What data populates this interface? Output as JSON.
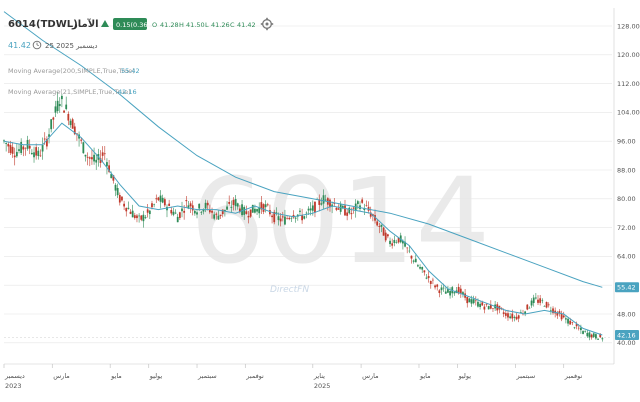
{
  "header": {
    "symbol": "6014",
    "exchange": "(TDWL)",
    "name": "الآمار",
    "change_badge": "0.15(0.36)",
    "ohlc": {
      "o_label": "O",
      "o": "41.28",
      "h_label": "H",
      "h": "41.50",
      "l_label": "L",
      "l": "41.26",
      "c_label": "C",
      "c": "41.42"
    },
    "last_price": "41.42",
    "date": "25 2025 ديسمبر",
    "gear_icon": "gear-icon",
    "clock_icon": "clock-icon",
    "up_icon": "triangle-up-icon"
  },
  "indicators": [
    {
      "label": "Moving Average(200,SIMPLE,True,True)",
      "value": "55.42",
      "color": "#4aa3c0"
    },
    {
      "label": "Moving Average(21,SIMPLE,True,True)",
      "value": "42.16",
      "color": "#4aa3c0"
    }
  ],
  "watermark": {
    "symbol": "6014",
    "brand": "DirectFN"
  },
  "colors": {
    "up": "#2e8b57",
    "down": "#c0392b",
    "ma": "#4aa3c0",
    "badge": "#2e8b57"
  },
  "chart_data": {
    "type": "candlestick",
    "yticks": [
      "128.00",
      "120.00",
      "112.00",
      "104.00",
      "96.00",
      "88.00",
      "80.00",
      "72.00",
      "64.00",
      "56.00",
      "48.00",
      "40.00"
    ],
    "ylim": [
      38,
      133
    ],
    "price_labels": [
      {
        "value": 55.42,
        "text": "55.42",
        "color": "#4aa3c0"
      },
      {
        "value": 42.16,
        "text": "42.16",
        "color": "#4aa3c0"
      }
    ],
    "xticks": [
      {
        "t": 0.0,
        "label": "ديسمبر",
        "sub": "2023"
      },
      {
        "t": 2.5,
        "label": "مارس",
        "sub": ""
      },
      {
        "t": 5.5,
        "label": "مايو",
        "sub": ""
      },
      {
        "t": 7.5,
        "label": "يوليو",
        "sub": ""
      },
      {
        "t": 10.0,
        "label": "سبتمبر",
        "sub": ""
      },
      {
        "t": 12.5,
        "label": "نوفمبر",
        "sub": ""
      },
      {
        "t": 16.0,
        "label": "يناير",
        "sub": "2025"
      },
      {
        "t": 18.5,
        "label": "مارس",
        "sub": ""
      },
      {
        "t": 21.5,
        "label": "مايو",
        "sub": ""
      },
      {
        "t": 23.5,
        "label": "يوليو",
        "sub": ""
      },
      {
        "t": 26.5,
        "label": "سبتمبر",
        "sub": ""
      },
      {
        "t": 29.0,
        "label": "نوفمبر",
        "sub": ""
      }
    ],
    "tmax": 31.5,
    "price_path": [
      [
        0.0,
        96
      ],
      [
        0.6,
        93
      ],
      [
        1.2,
        95
      ],
      [
        1.8,
        92
      ],
      [
        2.2,
        96
      ],
      [
        2.6,
        103
      ],
      [
        2.9,
        108
      ],
      [
        3.3,
        104
      ],
      [
        3.8,
        98
      ],
      [
        4.3,
        92
      ],
      [
        4.8,
        90
      ],
      [
        5.2,
        93
      ],
      [
        5.6,
        86
      ],
      [
        6.0,
        80
      ],
      [
        6.5,
        77
      ],
      [
        7.0,
        74
      ],
      [
        7.5,
        76
      ],
      [
        8.0,
        80
      ],
      [
        8.5,
        78
      ],
      [
        9.0,
        75
      ],
      [
        9.5,
        79
      ],
      [
        10.0,
        77
      ],
      [
        10.5,
        78
      ],
      [
        11.0,
        75
      ],
      [
        11.5,
        77
      ],
      [
        12.0,
        79
      ],
      [
        12.5,
        76
      ],
      [
        13.0,
        77
      ],
      [
        13.5,
        78
      ],
      [
        14.0,
        75
      ],
      [
        14.5,
        74
      ],
      [
        15.0,
        76
      ],
      [
        15.5,
        75
      ],
      [
        16.0,
        77
      ],
      [
        16.5,
        80
      ],
      [
        17.0,
        79
      ],
      [
        17.5,
        77
      ],
      [
        18.0,
        76
      ],
      [
        18.5,
        79
      ],
      [
        19.0,
        76
      ],
      [
        19.5,
        72
      ],
      [
        20.0,
        68
      ],
      [
        20.5,
        69
      ],
      [
        21.0,
        65
      ],
      [
        21.5,
        61
      ],
      [
        22.0,
        58
      ],
      [
        22.5,
        55
      ],
      [
        23.0,
        54
      ],
      [
        23.5,
        55
      ],
      [
        24.0,
        52
      ],
      [
        24.5,
        51
      ],
      [
        25.0,
        50
      ],
      [
        25.5,
        50
      ],
      [
        26.0,
        48
      ],
      [
        26.5,
        47
      ],
      [
        27.0,
        49
      ],
      [
        27.5,
        52
      ],
      [
        28.0,
        51
      ],
      [
        28.5,
        49
      ],
      [
        29.0,
        47
      ],
      [
        29.5,
        45
      ],
      [
        30.0,
        43
      ],
      [
        30.5,
        42
      ],
      [
        31.0,
        41.4
      ]
    ],
    "series": [
      {
        "name": "Moving Average(200,SIMPLE,True,True)",
        "points": [
          [
            0.0,
            132
          ],
          [
            2.0,
            124
          ],
          [
            4.0,
            117
          ],
          [
            6.0,
            109
          ],
          [
            8.0,
            100
          ],
          [
            10.0,
            92
          ],
          [
            12.0,
            86
          ],
          [
            14.0,
            82
          ],
          [
            16.0,
            80
          ],
          [
            18.0,
            78
          ],
          [
            20.0,
            76
          ],
          [
            22.0,
            73
          ],
          [
            24.0,
            69
          ],
          [
            26.0,
            65
          ],
          [
            28.0,
            61
          ],
          [
            30.0,
            57
          ],
          [
            31.0,
            55.42
          ]
        ]
      },
      {
        "name": "Moving Average(21,SIMPLE,True,True)",
        "points": [
          [
            0.0,
            96
          ],
          [
            1.0,
            95
          ],
          [
            2.0,
            95
          ],
          [
            3.0,
            101
          ],
          [
            4.0,
            97
          ],
          [
            5.0,
            91
          ],
          [
            6.0,
            84
          ],
          [
            7.0,
            78
          ],
          [
            8.0,
            77
          ],
          [
            9.0,
            78
          ],
          [
            10.0,
            77
          ],
          [
            11.0,
            77
          ],
          [
            12.0,
            76
          ],
          [
            13.0,
            78
          ],
          [
            14.0,
            76
          ],
          [
            15.0,
            75
          ],
          [
            16.0,
            76
          ],
          [
            17.0,
            78
          ],
          [
            18.0,
            77
          ],
          [
            19.0,
            76
          ],
          [
            20.0,
            71
          ],
          [
            21.0,
            67
          ],
          [
            22.0,
            60
          ],
          [
            23.0,
            55
          ],
          [
            24.0,
            53
          ],
          [
            25.0,
            51
          ],
          [
            26.0,
            49
          ],
          [
            27.0,
            48
          ],
          [
            28.0,
            49
          ],
          [
            29.0,
            48
          ],
          [
            30.0,
            44
          ],
          [
            31.0,
            42.16
          ]
        ]
      }
    ],
    "grid": "horizontal"
  }
}
